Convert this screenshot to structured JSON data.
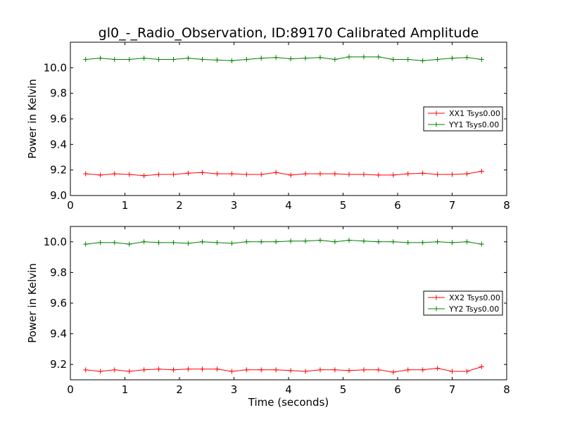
{
  "chart_data": [
    {
      "type": "line",
      "title": "gl0_-_Radio_Observation, ID:89170 Calibrated Amplitude",
      "xlabel": "",
      "ylabel": "Power in Kelvin",
      "xlim": [
        0,
        8
      ],
      "ylim": [
        9.0,
        10.2
      ],
      "xticks": [
        0,
        1,
        2,
        3,
        4,
        5,
        6,
        7,
        8
      ],
      "xtick_labels": [
        "0",
        "1",
        "2",
        "3",
        "4",
        "5",
        "6",
        "7",
        "8"
      ],
      "yticks": [
        9.0,
        9.2,
        9.4,
        9.6,
        9.8,
        10.0
      ],
      "ytick_labels": [
        "9.0",
        "9.2",
        "9.4",
        "9.6",
        "9.8",
        "10.0"
      ],
      "legend_position": "center-right",
      "grid": false,
      "x": [
        0.28,
        0.55,
        0.81,
        1.08,
        1.35,
        1.62,
        1.89,
        2.16,
        2.42,
        2.69,
        2.96,
        3.23,
        3.5,
        3.77,
        4.04,
        4.31,
        4.58,
        4.85,
        5.11,
        5.38,
        5.65,
        5.92,
        6.19,
        6.46,
        6.73,
        7.0,
        7.27,
        7.54
      ],
      "series": [
        {
          "name": "XX1 Tsys0.00",
          "color": "#ff0000",
          "values": [
            9.17,
            9.16,
            9.17,
            9.165,
            9.155,
            9.165,
            9.165,
            9.175,
            9.18,
            9.17,
            9.17,
            9.165,
            9.165,
            9.18,
            9.16,
            9.17,
            9.17,
            9.17,
            9.165,
            9.165,
            9.16,
            9.16,
            9.17,
            9.175,
            9.165,
            9.165,
            9.17,
            9.19
          ]
        },
        {
          "name": "YY1 Tsys0.00",
          "color": "#008000",
          "values": [
            10.065,
            10.075,
            10.065,
            10.065,
            10.075,
            10.065,
            10.065,
            10.075,
            10.065,
            10.06,
            10.055,
            10.065,
            10.075,
            10.08,
            10.07,
            10.075,
            10.08,
            10.065,
            10.085,
            10.085,
            10.085,
            10.065,
            10.065,
            10.055,
            10.065,
            10.075,
            10.08,
            10.065
          ]
        }
      ]
    },
    {
      "type": "line",
      "title": "",
      "xlabel": "Time (seconds)",
      "ylabel": "Power in Kelvin",
      "xlim": [
        0,
        8
      ],
      "ylim": [
        9.1,
        10.1
      ],
      "xticks": [
        0,
        1,
        2,
        3,
        4,
        5,
        6,
        7,
        8
      ],
      "xtick_labels": [
        "0",
        "1",
        "2",
        "3",
        "4",
        "5",
        "6",
        "7",
        "8"
      ],
      "yticks": [
        9.2,
        9.4,
        9.6,
        9.8,
        10.0
      ],
      "ytick_labels": [
        "9.2",
        "9.4",
        "9.6",
        "9.8",
        "10.0"
      ],
      "legend_position": "center-right",
      "grid": false,
      "x": [
        0.28,
        0.55,
        0.81,
        1.08,
        1.35,
        1.62,
        1.89,
        2.16,
        2.42,
        2.69,
        2.96,
        3.23,
        3.5,
        3.77,
        4.04,
        4.31,
        4.58,
        4.85,
        5.11,
        5.38,
        5.65,
        5.92,
        6.19,
        6.46,
        6.73,
        7.0,
        7.27,
        7.54
      ],
      "series": [
        {
          "name": "XX2 Tsys0.00",
          "color": "#ff0000",
          "values": [
            9.165,
            9.155,
            9.165,
            9.155,
            9.165,
            9.17,
            9.165,
            9.17,
            9.17,
            9.17,
            9.155,
            9.165,
            9.165,
            9.165,
            9.16,
            9.155,
            9.165,
            9.165,
            9.16,
            9.165,
            9.165,
            9.15,
            9.165,
            9.165,
            9.175,
            9.155,
            9.155,
            9.185
          ]
        },
        {
          "name": "YY2 Tsys0.00",
          "color": "#008000",
          "values": [
            9.985,
            9.995,
            9.995,
            9.985,
            10.0,
            9.995,
            9.995,
            9.99,
            10.0,
            9.995,
            9.99,
            10.0,
            10.0,
            10.0,
            10.005,
            10.005,
            10.01,
            10.0,
            10.01,
            10.005,
            10.0,
            10.0,
            9.995,
            9.995,
            10.0,
            9.995,
            10.0,
            9.985
          ]
        }
      ]
    }
  ]
}
